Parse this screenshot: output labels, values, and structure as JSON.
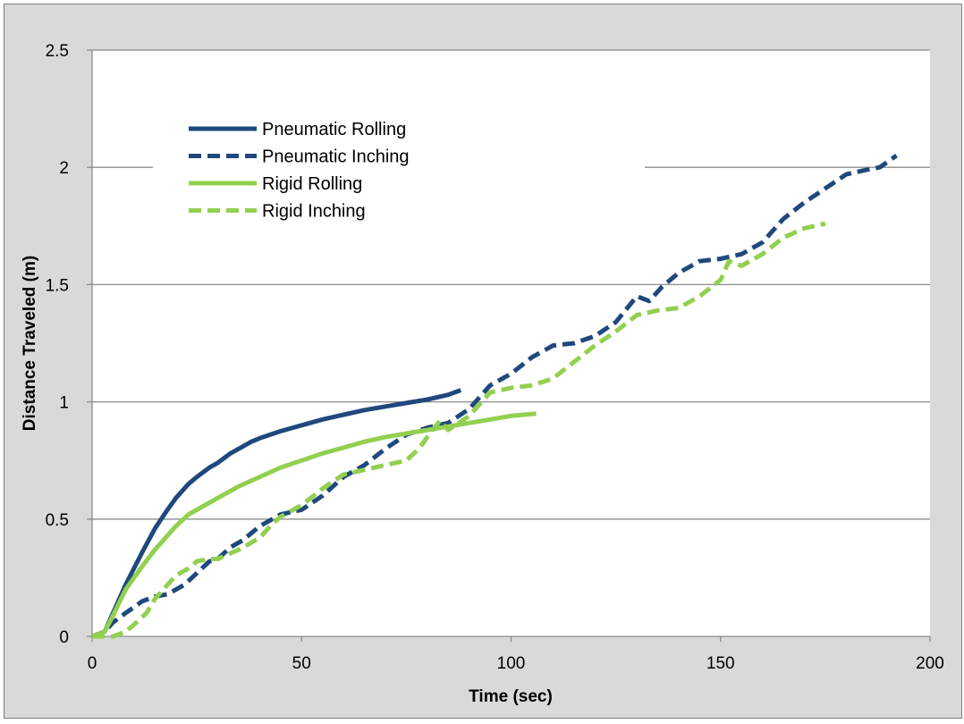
{
  "chart_data": {
    "type": "line",
    "title": "",
    "xlabel": "Time (sec)",
    "ylabel": "Distance Traveled (m)",
    "xlim": [
      0,
      200
    ],
    "ylim": [
      0,
      2.5
    ],
    "xticks": [
      0,
      50,
      100,
      150,
      200
    ],
    "yticks": [
      0,
      0.5,
      1,
      1.5,
      2,
      2.5
    ],
    "ytick_labels": [
      "0",
      "0.5",
      "1",
      "1.5",
      "2",
      "2.5"
    ],
    "grid": "horizontal",
    "legend_position": "top-left",
    "series": [
      {
        "name": "Pneumatic Rolling",
        "color": "#1f497d",
        "style": "solid",
        "x": [
          0,
          3,
          5,
          8,
          10,
          12,
          15,
          18,
          20,
          23,
          25,
          28,
          30,
          33,
          35,
          38,
          40,
          45,
          50,
          55,
          60,
          65,
          70,
          75,
          80,
          85,
          88
        ],
        "y": [
          0,
          0.02,
          0.1,
          0.22,
          0.29,
          0.36,
          0.46,
          0.54,
          0.59,
          0.65,
          0.68,
          0.72,
          0.74,
          0.78,
          0.8,
          0.83,
          0.845,
          0.875,
          0.9,
          0.925,
          0.945,
          0.965,
          0.98,
          0.995,
          1.01,
          1.03,
          1.05
        ]
      },
      {
        "name": "Pneumatic Inching",
        "color": "#1f497d",
        "style": "dashed",
        "x": [
          0,
          3,
          5,
          8,
          12,
          15,
          18,
          22,
          25,
          28,
          30,
          33,
          36,
          40,
          45,
          50,
          55,
          60,
          65,
          70,
          75,
          80,
          85,
          90,
          95,
          100,
          105,
          110,
          115,
          120,
          125,
          130,
          133,
          136,
          140,
          145,
          150,
          155,
          160,
          165,
          170,
          175,
          180,
          185,
          188,
          192
        ],
        "y": [
          0,
          0.02,
          0.06,
          0.1,
          0.15,
          0.17,
          0.18,
          0.22,
          0.27,
          0.32,
          0.33,
          0.38,
          0.41,
          0.47,
          0.52,
          0.54,
          0.6,
          0.68,
          0.73,
          0.8,
          0.86,
          0.89,
          0.91,
          0.97,
          1.07,
          1.12,
          1.19,
          1.24,
          1.25,
          1.28,
          1.34,
          1.45,
          1.43,
          1.49,
          1.55,
          1.6,
          1.61,
          1.63,
          1.68,
          1.78,
          1.85,
          1.91,
          1.97,
          1.99,
          2.0,
          2.05
        ]
      },
      {
        "name": "Rigid Rolling",
        "color": "#92d050",
        "style": "solid",
        "x": [
          0,
          3,
          5,
          8,
          10,
          12,
          15,
          18,
          20,
          23,
          25,
          28,
          30,
          35,
          40,
          45,
          50,
          55,
          60,
          65,
          70,
          75,
          80,
          85,
          90,
          95,
          100,
          106
        ],
        "y": [
          0,
          0.02,
          0.09,
          0.2,
          0.25,
          0.3,
          0.37,
          0.43,
          0.47,
          0.52,
          0.54,
          0.57,
          0.59,
          0.64,
          0.68,
          0.72,
          0.75,
          0.78,
          0.805,
          0.83,
          0.85,
          0.865,
          0.88,
          0.895,
          0.91,
          0.925,
          0.94,
          0.95
        ]
      },
      {
        "name": "Rigid Inching",
        "color": "#92d050",
        "style": "dashed",
        "x": [
          0,
          3,
          5,
          8,
          10,
          13,
          15,
          18,
          20,
          23,
          25,
          28,
          30,
          35,
          40,
          43,
          45,
          50,
          55,
          60,
          65,
          70,
          75,
          78,
          80,
          83,
          85,
          90,
          95,
          100,
          105,
          110,
          115,
          120,
          125,
          130,
          135,
          140,
          145,
          150,
          152,
          155,
          160,
          165,
          170,
          175
        ],
        "y": [
          0,
          0.0,
          0.0,
          0.02,
          0.05,
          0.1,
          0.16,
          0.22,
          0.26,
          0.29,
          0.32,
          0.33,
          0.33,
          0.37,
          0.42,
          0.48,
          0.51,
          0.56,
          0.63,
          0.69,
          0.71,
          0.73,
          0.75,
          0.8,
          0.85,
          0.92,
          0.88,
          0.94,
          1.04,
          1.06,
          1.07,
          1.1,
          1.17,
          1.24,
          1.3,
          1.37,
          1.39,
          1.4,
          1.45,
          1.52,
          1.6,
          1.58,
          1.63,
          1.7,
          1.74,
          1.76
        ]
      }
    ]
  }
}
